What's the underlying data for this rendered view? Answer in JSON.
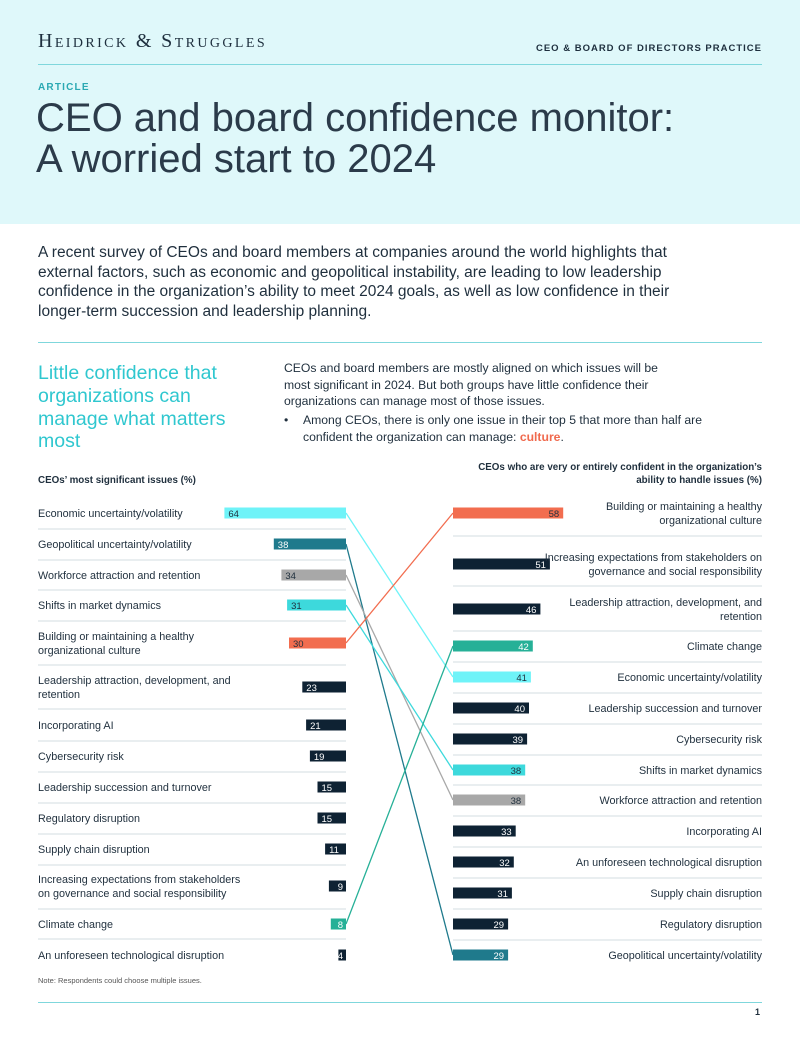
{
  "header": {
    "logo": "Heidrick & Struggles",
    "practice": "CEO & BOARD OF DIRECTORS PRACTICE",
    "label": "ARTICLE",
    "title_line1": "CEO and board confidence monitor:",
    "title_line2": "A worried start to 2024"
  },
  "lead": "A recent survey of CEOs and board members at companies around the world highlights that external factors, such as economic and geopolitical instability, are leading to low leadership confidence in the organization’s ability to meet 2024 goals, as well as low confidence in their longer-term succession and leadership planning.",
  "section": {
    "title": "Little confidence that organizations can manage what matters most",
    "intro": "CEOs and board members are mostly aligned on which issues will be most significant in 2024. But both groups have little confidence their organizations can manage most of those issues.",
    "bullet_symbol": "•",
    "bullet_text": "Among CEOs, there is only one issue in their top 5 that more than half are confident the organization can manage: ",
    "bullet_highlight": "culture",
    "bullet_end": "."
  },
  "chart_data": [
    {
      "type": "bar",
      "title": "CEOs’ most significant issues (%)",
      "categories": [
        "Economic uncertainty/volatility",
        "Geopolitical uncertainty/volatility",
        "Workforce attraction and retention",
        "Shifts in market dynamics",
        "Building or maintaining a healthy organizational culture",
        "Leadership attraction, development, and retention",
        "Incorporating AI",
        "Cybersecurity risk",
        "Leadership succession and turnover",
        "Regulatory disruption",
        "Supply chain disruption",
        "Increasing expectations from stakeholders on governance and social responsibility",
        "Climate change",
        "An unforeseen technological disruption"
      ],
      "values": [
        64,
        38,
        34,
        31,
        30,
        23,
        21,
        19,
        15,
        15,
        11,
        9,
        8,
        4
      ],
      "colors": [
        "#6ff3f8",
        "#1f7a8c",
        "#a8a8a8",
        "#3dd9dc",
        "#f26d4f",
        "#0e2233",
        "#0e2233",
        "#0e2233",
        "#0e2233",
        "#0e2233",
        "#0e2233",
        "#0e2233",
        "#26b097",
        "#0e2233"
      ]
    },
    {
      "type": "bar",
      "title": "CEOs who are very or entirely confident in the organization’s ability to handle issues (%)",
      "categories": [
        "Building or maintaining a healthy organizational culture",
        "Increasing expectations from stakeholders on governance and social responsibility",
        "Leadership attraction, development, and retention",
        "Climate change",
        "Economic uncertainty/volatility",
        "Leadership succession and turnover",
        "Cybersecurity risk",
        "Shifts in market dynamics",
        "Workforce attraction and retention",
        "Incorporating AI",
        "An unforeseen technological disruption",
        "Supply chain disruption",
        "Regulatory disruption",
        "Geopolitical uncertainty/volatility"
      ],
      "values": [
        58,
        51,
        46,
        42,
        41,
        40,
        39,
        38,
        38,
        33,
        32,
        31,
        29,
        29
      ],
      "colors": [
        "#f26d4f",
        "#0e2233",
        "#0e2233",
        "#26b097",
        "#6ff3f8",
        "#0e2233",
        "#0e2233",
        "#3dd9dc",
        "#a8a8a8",
        "#0e2233",
        "#0e2233",
        "#0e2233",
        "#0e2233",
        "#1f7a8c"
      ]
    }
  ],
  "connectors": [
    {
      "from": 0,
      "to": 4,
      "color": "#6ff3f8"
    },
    {
      "from": 1,
      "to": 13,
      "color": "#1f7a8c"
    },
    {
      "from": 2,
      "to": 8,
      "color": "#a8a8a8"
    },
    {
      "from": 3,
      "to": 7,
      "color": "#3dd9dc"
    },
    {
      "from": 4,
      "to": 0,
      "color": "#f26d4f"
    },
    {
      "from": 12,
      "to": 3,
      "color": "#26b097"
    }
  ],
  "note": "Note: Respondents could choose multiple issues.",
  "page_number": "1"
}
